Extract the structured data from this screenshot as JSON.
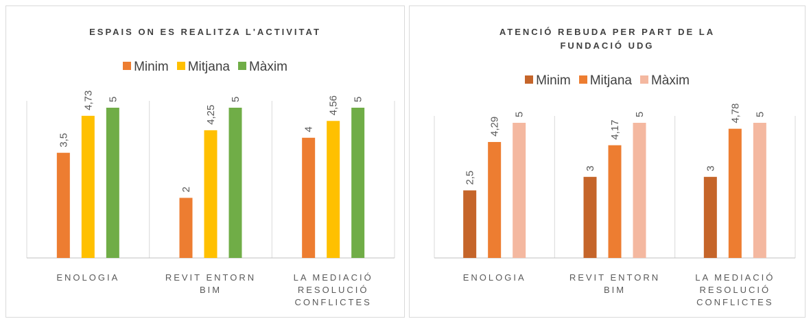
{
  "chart_data": [
    {
      "type": "bar",
      "title": "ESPAIS ON ES REALITZA L'ACTIVITAT",
      "categories": [
        [
          "ENOLOGIA"
        ],
        [
          "REVIT ENTORN",
          "BIM"
        ],
        [
          "LA MEDIACIÓ",
          "RESOLUCIÓ",
          "CONFLICTES"
        ]
      ],
      "series": [
        {
          "name": "Minim",
          "color": "#ED7D31",
          "values": [
            3.5,
            2,
            4
          ],
          "labels": [
            "3,5",
            "2",
            "4"
          ]
        },
        {
          "name": "Mitjana",
          "color": "#FFC000",
          "values": [
            4.73,
            4.25,
            4.56
          ],
          "labels": [
            "4,73",
            "4,25",
            "4,56"
          ]
        },
        {
          "name": "Màxim",
          "color": "#70AD47",
          "values": [
            5,
            5,
            5
          ],
          "labels": [
            "5",
            "5",
            "5"
          ]
        }
      ],
      "ylim": [
        0,
        5
      ],
      "legend_position": "top"
    },
    {
      "type": "bar",
      "title": "ATENCIÓ REBUDA PER PART DE LA FUNDACIÓ UDG",
      "categories": [
        [
          "ENOLOGIA"
        ],
        [
          "REVIT ENTORN",
          "BIM"
        ],
        [
          "LA MEDIACIÓ",
          "RESOLUCIÓ",
          "CONFLICTES"
        ]
      ],
      "series": [
        {
          "name": "Minim",
          "color": "#C5652A",
          "values": [
            2.5,
            3,
            3
          ],
          "labels": [
            "2,5",
            "3",
            "3"
          ]
        },
        {
          "name": "Mitjana",
          "color": "#ED7D31",
          "values": [
            4.29,
            4.17,
            4.78
          ],
          "labels": [
            "4,29",
            "4,17",
            "4,78"
          ]
        },
        {
          "name": "Màxim",
          "color": "#F4B8A0",
          "values": [
            5,
            5,
            5
          ],
          "labels": [
            "5",
            "5",
            "5"
          ]
        }
      ],
      "ylim": [
        0,
        5
      ],
      "legend_position": "top"
    }
  ]
}
